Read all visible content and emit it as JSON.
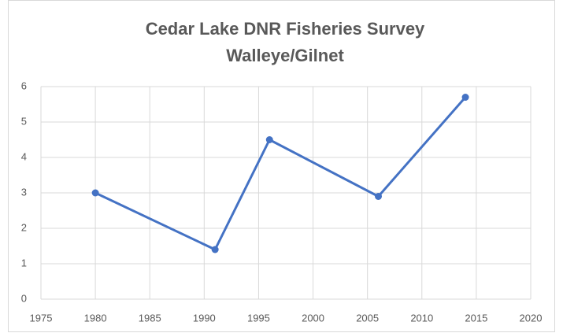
{
  "chart_data": {
    "type": "line",
    "title": [
      "Cedar Lake DNR Fisheries Survey",
      "Walleye/Gilnet"
    ],
    "series": [
      {
        "x": [
          1980,
          1991,
          1996,
          2006,
          2014
        ],
        "values": [
          3.0,
          1.4,
          4.5,
          2.9,
          5.7
        ],
        "color": "#4472c4"
      }
    ],
    "xlim": [
      1975,
      2020
    ],
    "xticks": [
      1975,
      1980,
      1985,
      1990,
      1995,
      2000,
      2005,
      2010,
      2015,
      2020
    ],
    "ylim": [
      0,
      6
    ],
    "yticks": [
      0,
      1,
      2,
      3,
      4,
      5,
      6
    ],
    "grid": true
  }
}
